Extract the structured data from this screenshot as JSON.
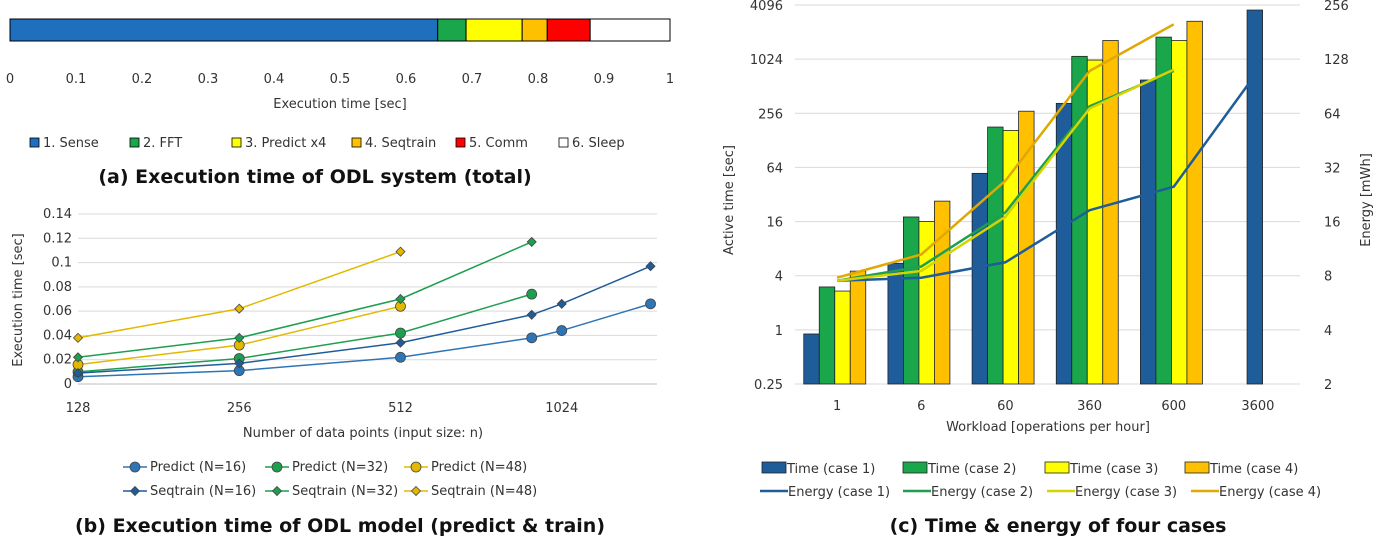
{
  "colors": {
    "sense": "#1f6fbf",
    "fft": "#1aa64a",
    "predict": "#ffff00",
    "seqtrain": "#ffc000",
    "comm": "#ff0000",
    "sleep": "#ffffff",
    "c1": "#1f5c9a",
    "c2": "#1aa64a",
    "c3": "#d4d400",
    "c4": "#e0a800",
    "line1": "#2e75b6",
    "line2": "#1e9e4f",
    "line3": "#e3b800"
  },
  "chart_data": [
    {
      "id": "a",
      "type": "bar",
      "orientation": "horizontal-stacked",
      "caption": "(a) Execution time of ODL system (total)",
      "xlabel": "Execution time [sec]",
      "xlim": [
        0,
        1
      ],
      "xticks": [
        "0",
        "0.1",
        "0.2",
        "0.3",
        "0.4",
        "0.5",
        "0.6",
        "0.7",
        "0.8",
        "0.9",
        "1"
      ],
      "segments": [
        {
          "name": "1. Sense",
          "value": 0.648,
          "color": "sense"
        },
        {
          "name": "2. FFT",
          "value": 0.043,
          "color": "fft"
        },
        {
          "name": "3. Predict x4",
          "value": 0.085,
          "color": "predict"
        },
        {
          "name": "4. Seqtrain",
          "value": 0.038,
          "color": "seqtrain"
        },
        {
          "name": "5. Comm",
          "value": 0.065,
          "color": "comm"
        },
        {
          "name": "6. Sleep",
          "value": 0.121,
          "color": "sleep"
        }
      ]
    },
    {
      "id": "b",
      "type": "line",
      "caption": "(b) Execution time of ODL model (predict & train)",
      "xlabel": "Number of data points (input size: n)",
      "ylabel": "Execution time [sec]",
      "xscale": "log2",
      "xticks": [
        "128",
        "256",
        "512",
        "1024"
      ],
      "ylim": [
        0,
        0.14
      ],
      "yticks": [
        "0",
        "0.02",
        "0.04",
        "0.06",
        "0.08",
        "0.1",
        "0.12",
        "0.14"
      ],
      "series": [
        {
          "name": "Predict (N=16)",
          "marker": "circle",
          "color": "line1",
          "x": [
            128,
            256,
            512,
            900,
            1024,
            1500
          ],
          "y": [
            0.006,
            0.011,
            0.022,
            0.038,
            0.044,
            0.066
          ]
        },
        {
          "name": "Predict (N=32)",
          "marker": "circle",
          "color": "line2",
          "x": [
            128,
            256,
            512,
            900
          ],
          "y": [
            0.01,
            0.021,
            0.042,
            0.074
          ]
        },
        {
          "name": "Predict (N=48)",
          "marker": "circle",
          "color": "line3",
          "x": [
            128,
            256,
            512
          ],
          "y": [
            0.016,
            0.032,
            0.064
          ]
        },
        {
          "name": "Seqtrain (N=16)",
          "marker": "diamond",
          "color": "c1",
          "x": [
            128,
            256,
            512,
            900,
            1024,
            1500
          ],
          "y": [
            0.009,
            0.017,
            0.034,
            0.057,
            0.066,
            0.097
          ]
        },
        {
          "name": "Seqtrain (N=32)",
          "marker": "diamond",
          "color": "line2",
          "x": [
            128,
            256,
            512,
            900
          ],
          "y": [
            0.022,
            0.038,
            0.07,
            0.117
          ]
        },
        {
          "name": "Seqtrain (N=48)",
          "marker": "diamond",
          "color": "line3",
          "x": [
            128,
            256,
            512
          ],
          "y": [
            0.038,
            0.062,
            0.109
          ]
        }
      ]
    },
    {
      "id": "c",
      "type": "bar",
      "caption": "(c) Time & energy of four cases",
      "xlabel": "Workload [operations per hour]",
      "ylabel": "Active time [sec]",
      "y2label": "Energy [mWh]",
      "yscale": "log4",
      "y2scale": "log2",
      "categories": [
        "1",
        "6",
        "60",
        "360",
        "600",
        "3600"
      ],
      "ylim": [
        0.25,
        4096
      ],
      "yticks": [
        "0.25",
        "1",
        "4",
        "16",
        "64",
        "256",
        "1024",
        "4096"
      ],
      "y2lim": [
        2,
        256
      ],
      "y2ticks": [
        "2",
        "4",
        "8",
        "16",
        "32",
        "64",
        "128",
        "256"
      ],
      "bars": [
        {
          "name": "Time (case 1)",
          "color": "c1",
          "values": [
            0.9,
            5.5,
            55,
            330,
            600,
            3600
          ]
        },
        {
          "name": "Time (case 2)",
          "color": "c2",
          "values": [
            3,
            18,
            180,
            1100,
            1800,
            null
          ]
        },
        {
          "name": "Time (case 3)",
          "color": "predict",
          "values": [
            2.7,
            16,
            165,
            1000,
            1650,
            null
          ]
        },
        {
          "name": "Time (case 4)",
          "color": "seqtrain",
          "values": [
            4.5,
            27,
            270,
            1650,
            2700,
            null
          ]
        }
      ],
      "lines": [
        {
          "name": "Energy (case 1)",
          "color": "c1",
          "values": [
            7.5,
            7.8,
            9.5,
            18.5,
            25,
            110
          ]
        },
        {
          "name": "Energy (case 2)",
          "color": "line2",
          "values": [
            7.5,
            9,
            18,
            70,
            110,
            null
          ]
        },
        {
          "name": "Energy (case 3)",
          "color": "c3",
          "values": [
            7.5,
            8.5,
            17,
            68,
            112,
            null
          ]
        },
        {
          "name": "Energy (case 4)",
          "color": "c4",
          "values": [
            7.8,
            10.5,
            27,
            110,
            200,
            null
          ]
        }
      ]
    }
  ]
}
